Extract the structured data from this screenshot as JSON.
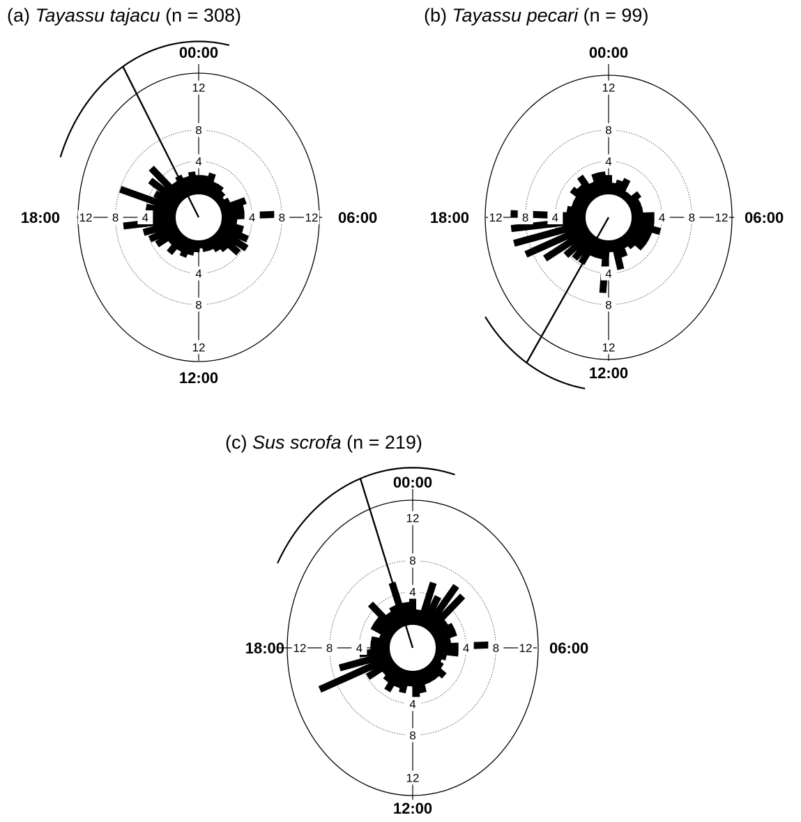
{
  "chart_data": [
    {
      "type": "rose",
      "title_prefix": "(a)",
      "species": "Tayassu tajacu",
      "title_suffix": "(n = 308)",
      "hour_labels": [
        "00:00",
        "06:00",
        "12:00",
        "18:00"
      ],
      "ring_labels": [
        "4",
        "8",
        "12"
      ],
      "r_max": 12,
      "values": [
        2.5,
        2.5,
        3,
        2,
        2,
        1.5,
        1,
        1.5,
        3.5,
        3,
        8,
        2,
        3,
        4,
        4.5,
        4,
        2.5,
        2,
        1.5,
        1.5,
        1,
        1.5,
        2,
        2.5,
        2,
        3,
        2,
        3.5,
        4,
        4.5,
        7,
        3,
        4,
        8,
        3.5,
        5,
        6,
        2.5,
        3,
        2.5,
        3
      ],
      "mean_direction_deg": 329,
      "ci_deg": [
        290,
        12
      ]
    },
    {
      "type": "rose",
      "title_prefix": "(b)",
      "species": "Tayassu pecari",
      "title_suffix": "(n = 99)",
      "hour_labels": [
        "00:00",
        "06:00",
        "12:00",
        "18:00"
      ],
      "ring_labels": [
        "4",
        "8",
        "12"
      ],
      "r_max": 12,
      "values": [
        2.5,
        1.5,
        2,
        2.5,
        1,
        1,
        2,
        1.5,
        1.5,
        1.5,
        5,
        3,
        4,
        3,
        3,
        3,
        2,
        1.5,
        2.5,
        4,
        1.5,
        7,
        2.5,
        2.5,
        4,
        4,
        4.5,
        7,
        9,
        10,
        10,
        10,
        2.5,
        2,
        2,
        3,
        2.5,
        3.5,
        2,
        3,
        3
      ],
      "mean_direction_deg": 213,
      "ci_deg": [
        189,
        235
      ]
    },
    {
      "type": "rose",
      "title_prefix": "(c)",
      "species": "Sus scrofa",
      "title_suffix": "(n = 219)",
      "hour_labels": [
        "00:00",
        "06:00",
        "12:00",
        "18:00"
      ],
      "ring_labels": [
        "4",
        "8",
        "12"
      ],
      "r_max": 12,
      "values": [
        3.5,
        2,
        6,
        4.5,
        7,
        6.5,
        2.5,
        3,
        3,
        2,
        7,
        3,
        1.5,
        1,
        1.5,
        2.5,
        2,
        2,
        2,
        3,
        3.5,
        2,
        3,
        2.5,
        3.5,
        2.5,
        2,
        4,
        10.5,
        7,
        4,
        2.5,
        2.5,
        1.5,
        3,
        3,
        5,
        2.5,
        3,
        6,
        3
      ],
      "mean_direction_deg": 340,
      "ci_deg": [
        298,
        16
      ]
    }
  ]
}
